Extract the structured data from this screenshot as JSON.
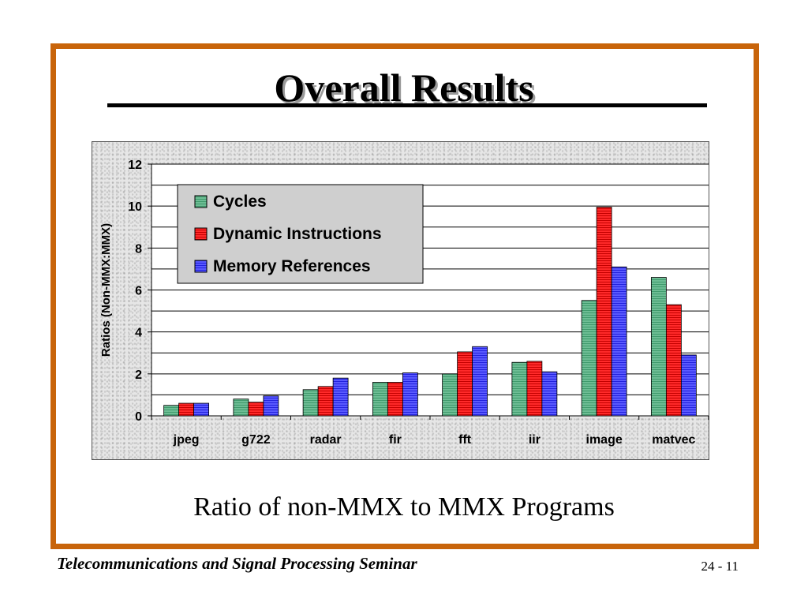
{
  "slide": {
    "title": "Overall Results",
    "caption": "Ratio of non-MMX to MMX Programs",
    "footer_left": "Telecommunications and Signal Processing Seminar",
    "footer_right": "24 - 11",
    "frame_color": "#c8640a"
  },
  "chart_data": {
    "type": "bar",
    "title": "",
    "xlabel": "",
    "ylabel": "Ratios (Non-MMX:MMX)",
    "ylim": [
      0,
      12
    ],
    "yticks": [
      0,
      2,
      4,
      6,
      8,
      10,
      12
    ],
    "grid": true,
    "legend_position": "top-left",
    "categories": [
      "jpeg",
      "g722",
      "radar",
      "fir",
      "fft",
      "iir",
      "image",
      "matvec"
    ],
    "series": [
      {
        "name": "Cycles",
        "color": "#5fb38a",
        "values": [
          0.5,
          0.8,
          1.25,
          1.6,
          2.0,
          2.55,
          5.5,
          6.6
        ]
      },
      {
        "name": "Dynamic Instructions",
        "color": "#ee1111",
        "values": [
          0.6,
          0.65,
          1.4,
          1.6,
          3.05,
          2.6,
          9.95,
          5.3
        ]
      },
      {
        "name": "Memory References",
        "color": "#4444ff",
        "values": [
          0.6,
          0.95,
          1.8,
          2.05,
          3.3,
          2.1,
          7.1,
          2.9
        ]
      }
    ]
  }
}
